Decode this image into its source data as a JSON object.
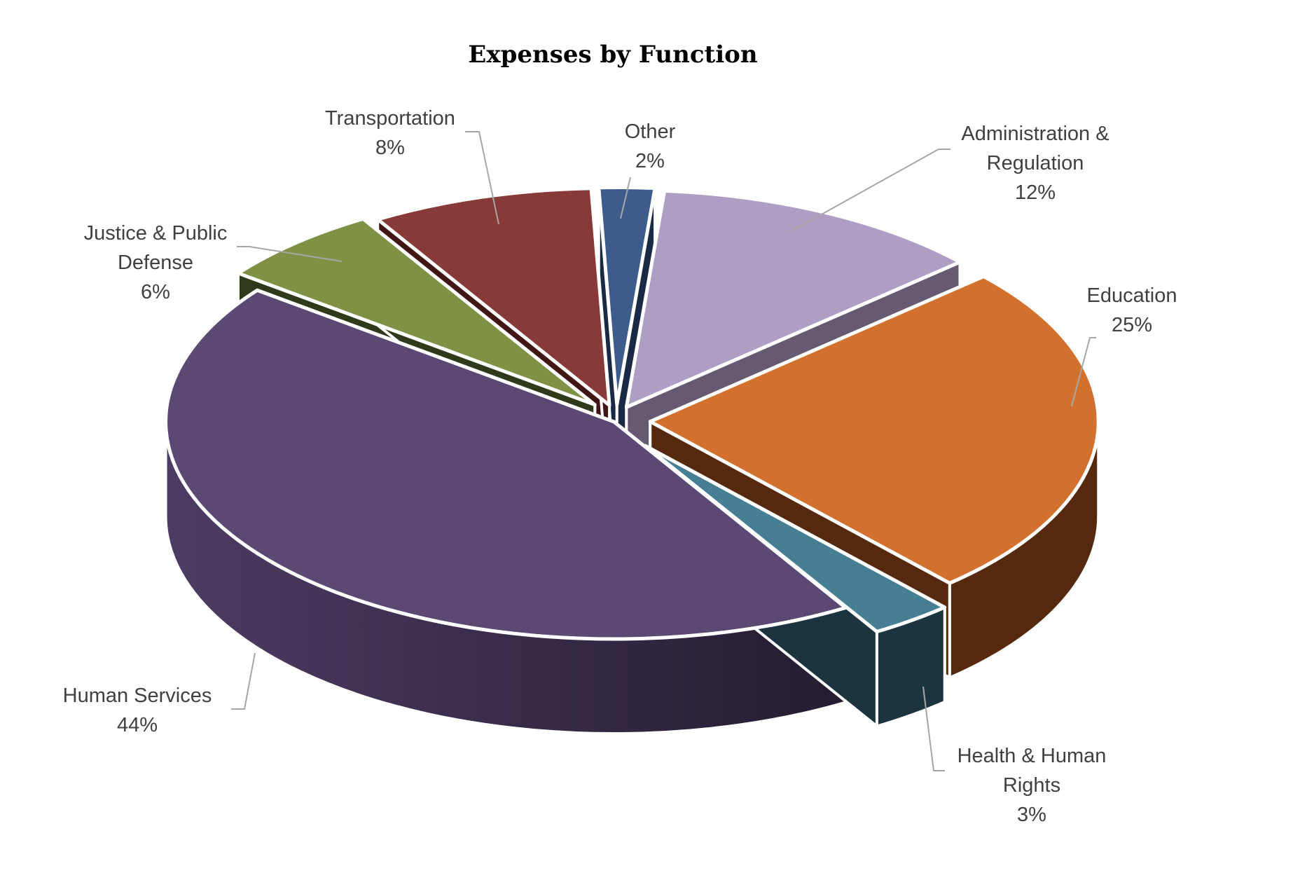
{
  "chart_data": {
    "type": "pie",
    "title": "Expenses by Function",
    "slices": [
      {
        "label": "Administration & Regulation",
        "label_lines": [
          "Administration &",
          "Regulation"
        ],
        "value": 12,
        "value_label": "12%",
        "color": "#ae9ec3",
        "side_color": "#655a72"
      },
      {
        "label": "Education",
        "label_lines": [
          "Education"
        ],
        "value": 25,
        "value_label": "25%",
        "color": "#d2712d",
        "side_color": "#54290e"
      },
      {
        "label": "Health & Human Rights",
        "label_lines": [
          "Health & Human",
          "Rights"
        ],
        "value": 3,
        "value_label": "3%",
        "color": "#467f93",
        "side_color": "#1c3340"
      },
      {
        "label": "Human Services",
        "label_lines": [
          "Human Services"
        ],
        "value": 44,
        "value_label": "44%",
        "color": "#5b4873",
        "side_color": "#3f3154"
      },
      {
        "label": "Justice & Public Defense",
        "label_lines": [
          "Justice & Public",
          "Defense"
        ],
        "value": 6,
        "value_label": "6%",
        "color": "#7f9145",
        "side_color": "#2f3a1a"
      },
      {
        "label": "Transportation",
        "label_lines": [
          "Transportation"
        ],
        "value": 8,
        "value_label": "8%",
        "color": "#873a37",
        "side_color": "#411716"
      },
      {
        "label": "Other",
        "label_lines": [
          "Other"
        ],
        "value": 2,
        "value_label": "2%",
        "color": "#3d5c8c",
        "side_color": "#1a2a44"
      }
    ],
    "legend": "none",
    "data_labels": "outside-with-leader-lines"
  }
}
